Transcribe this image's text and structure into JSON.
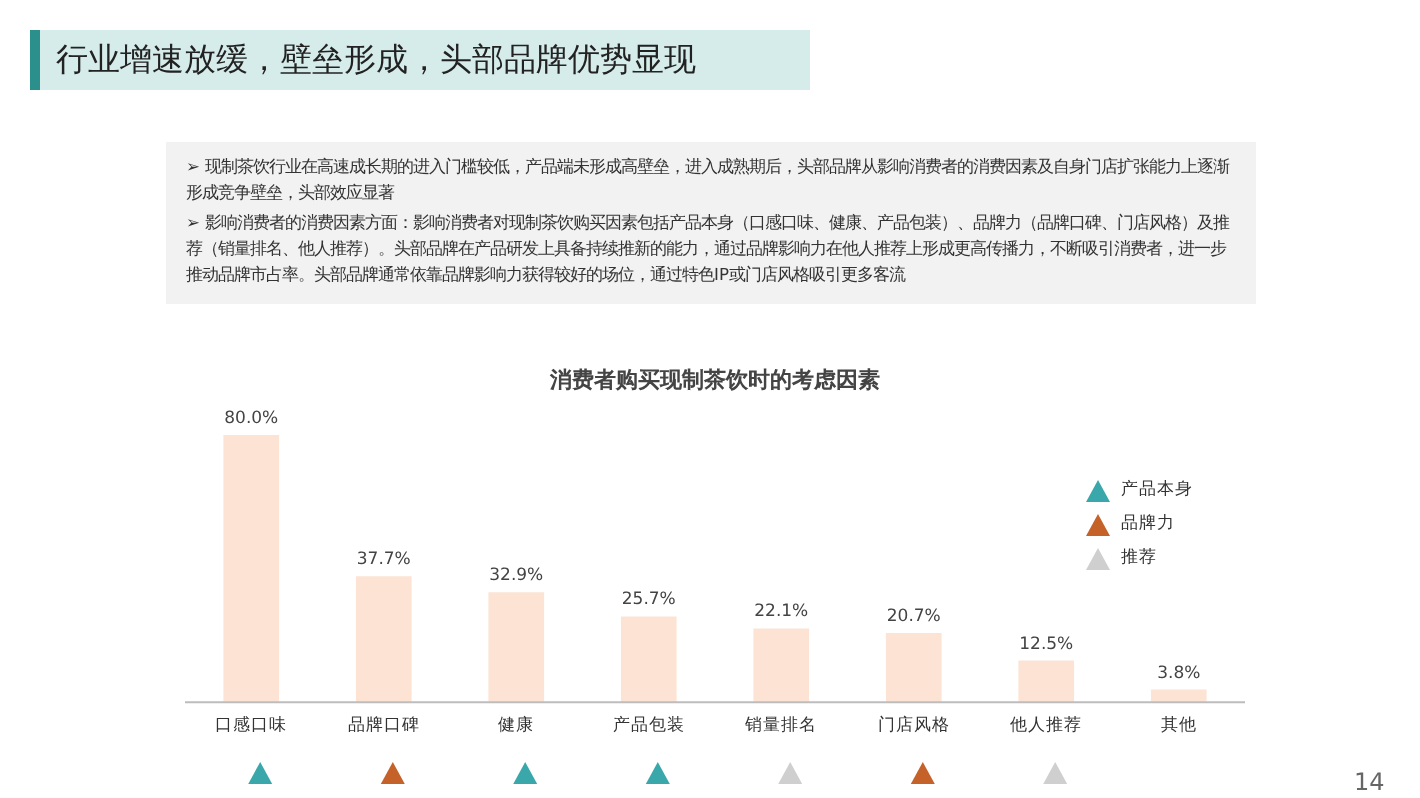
{
  "chart_data": {
    "type": "bar",
    "title": "行业增速放缓，壁垒形成，头部品牌优势显现",
    "subtitle": "消费者购买现制茶饮时的考虑因素",
    "categories": [
      "口感口味",
      "品牌口碑",
      "健康",
      "产品包装",
      "销量排名",
      "门店风格",
      "他人推荐",
      "其他"
    ],
    "values": [
      80.0,
      37.7,
      32.9,
      25.7,
      22.1,
      20.7,
      12.5,
      3.8
    ],
    "value_labels": [
      "80.0%",
      "37.7%",
      "32.9%",
      "25.7%",
      "22.1%",
      "20.7%",
      "12.5%",
      "3.8%"
    ],
    "color": "#fde3d4",
    "annotations": [
      "➢ 现制茶饮行业在高速成长期的进入门槛较低，产品端未形成高壁垒，进入成熟期后，头部品牌从影响消费者的消费因素及自身门店扩张能力上逐渐形成竞争壁垒，头部效应显著",
      "➢ 影响消费者的消费因素方面：影响消费者对现制茶饮购买因素包括产品本身（口感口味、健康、产品包装）、品牌力（品牌口碑、门店风格）及推荐（销量排名、他人推荐）。头部品牌在产品研发上具备持续推新的能力，通过品牌影响力在他人推荐上形成更高传播力，不断吸引消费者，进一步推动品牌市占率。头部品牌通常依靠品牌影响力获得较好的场位，通过特色IP或门店风格吸引更多客流",
      "产品本身",
      "品牌力",
      "推荐",
      "14"
    ],
    "grid": false
  }
}
